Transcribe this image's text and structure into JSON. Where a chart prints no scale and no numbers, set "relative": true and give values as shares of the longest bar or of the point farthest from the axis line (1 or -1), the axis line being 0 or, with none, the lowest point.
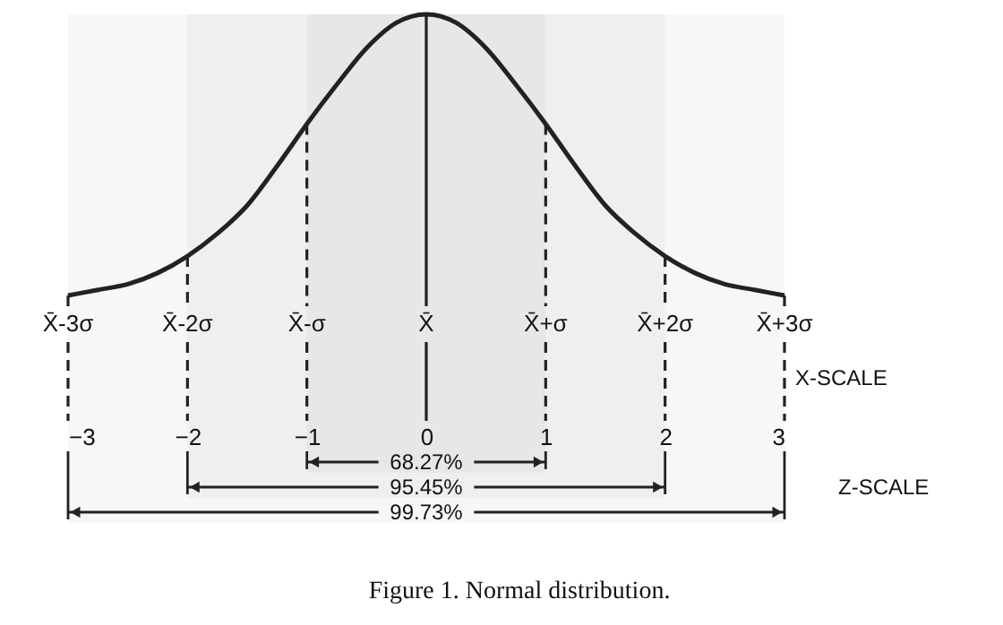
{
  "chart_data": {
    "type": "line",
    "relative": true,
    "x": [
      -3,
      -2.75,
      -2.5,
      -2.25,
      -2,
      -1.75,
      -1.5,
      -1.25,
      -1,
      -0.75,
      -0.5,
      -0.25,
      0,
      0.25,
      0.5,
      0.75,
      1,
      1.25,
      1.5,
      1.75,
      2,
      2.25,
      2.5,
      2.75,
      3
    ],
    "series": [
      {
        "color": "#222222",
        "values": [
          0,
          0.02,
          0.04,
          0.08,
          0.14,
          0.22,
          0.32,
          0.46,
          0.61,
          0.75,
          0.88,
          0.97,
          1,
          0.97,
          0.88,
          0.75,
          0.61,
          0.46,
          0.32,
          0.22,
          0.14,
          0.08,
          0.04,
          0.02,
          0
        ]
      }
    ],
    "xlim": [
      -3,
      3
    ],
    "xticks": [
      -3,
      -2,
      -1,
      0,
      1,
      2,
      3
    ],
    "tick_labels": "x",
    "ref_lines": [
      {
        "axis": "x",
        "value": -3,
        "label": "X̄-3σ",
        "line_style": "dashed"
      },
      {
        "axis": "x",
        "value": -2,
        "label": "X̄-2σ",
        "line_style": "dashed"
      },
      {
        "axis": "x",
        "value": -1,
        "label": "X̄-σ",
        "line_style": "dashed"
      },
      {
        "axis": "x",
        "value": 0,
        "label": "X̄",
        "line_style": "solid"
      },
      {
        "axis": "x",
        "value": 1,
        "label": "X̄+σ",
        "line_style": "dashed"
      },
      {
        "axis": "x",
        "value": 2,
        "label": "X̄+2σ",
        "line_style": "dashed"
      },
      {
        "axis": "x",
        "value": 3,
        "label": "X̄+3σ",
        "line_style": "dashed"
      }
    ],
    "bands": [
      {
        "axis": "x",
        "from": -1,
        "to": 1,
        "label": "68.27%"
      },
      {
        "axis": "x",
        "from": -2,
        "to": 2,
        "label": "95.45%"
      },
      {
        "axis": "x",
        "from": -3,
        "to": 3,
        "label": "99.73%"
      }
    ],
    "annotations": [
      "X-SCALE",
      "Z-SCALE",
      "Figure 1. Normal distribution."
    ]
  }
}
